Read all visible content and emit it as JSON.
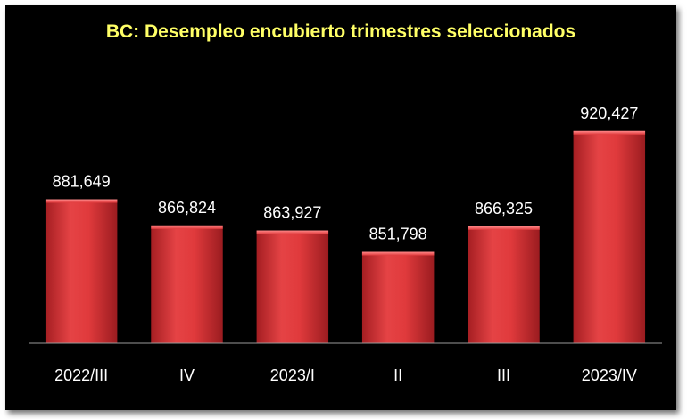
{
  "chart_data": {
    "type": "bar",
    "title": "BC: Desempleo encubierto trimestres seleccionados",
    "categories": [
      "2022/III",
      "IV",
      "2023/I",
      "II",
      "III",
      "2023/IV"
    ],
    "values": [
      881649,
      866824,
      863927,
      851798,
      866325,
      920427
    ],
    "value_labels": [
      "881,649",
      "866,824",
      "863,927",
      "851,798",
      "866,325",
      "920,427"
    ],
    "xlabel": "",
    "ylabel": "",
    "ylim": [
      800000,
      935000
    ],
    "grid": false,
    "legend": "none",
    "colors": {
      "background": "#000000",
      "bar": "#e03a3c",
      "title": "#ffff66",
      "text": "#ffffff",
      "axis": "#9a9a9a"
    }
  }
}
